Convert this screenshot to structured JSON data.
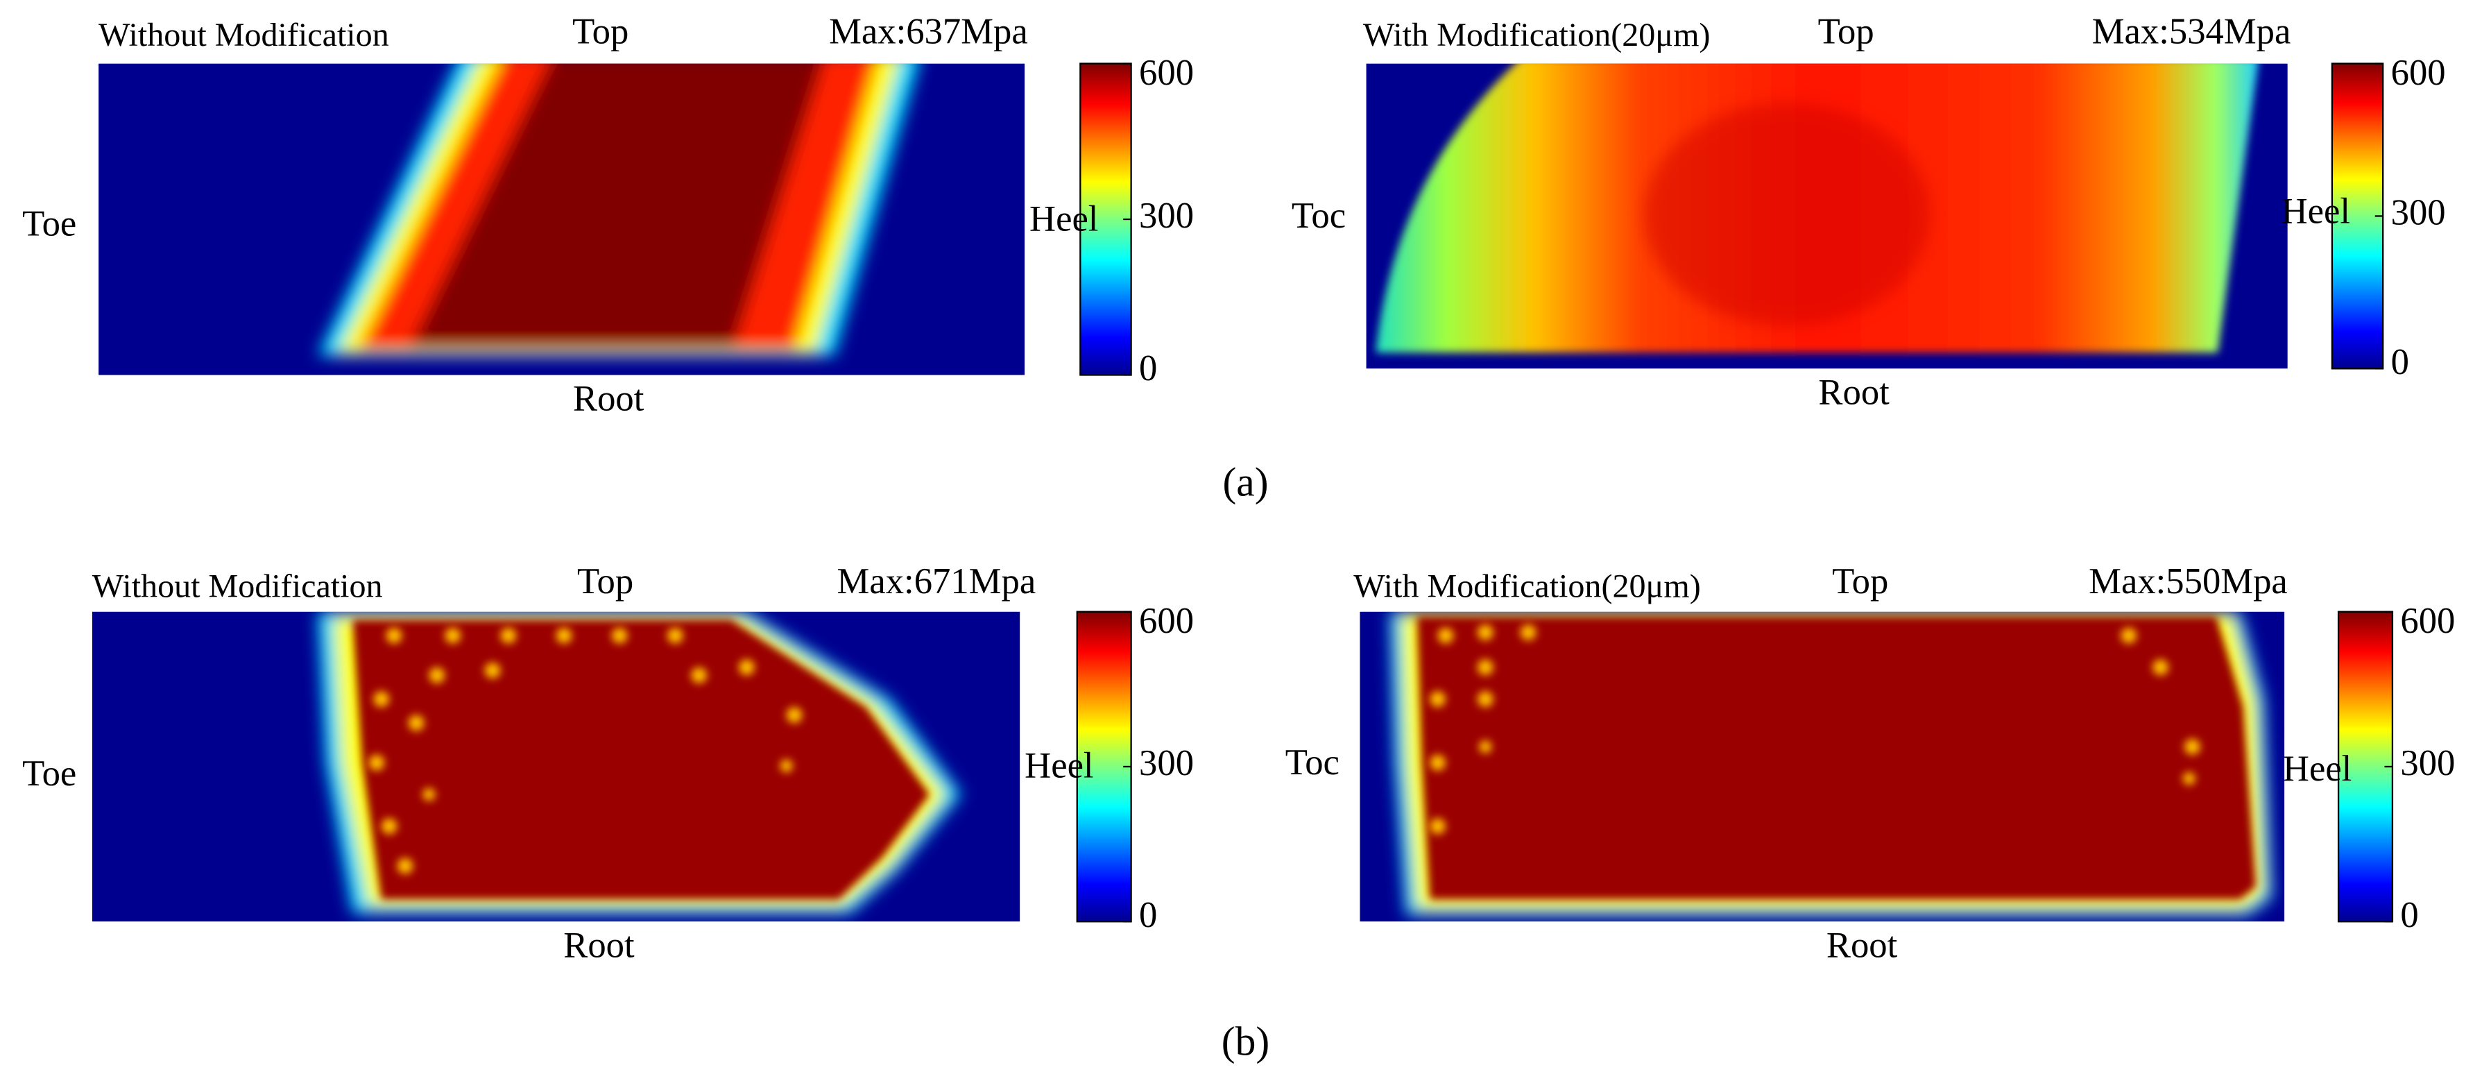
{
  "figure": {
    "rows": [
      {
        "label": "(a)",
        "panels": [
          {
            "title": "Without Modification",
            "top": "Top",
            "max": "Max:637Mpa",
            "left": "Toe",
            "right": "Heel",
            "bottom": "Root",
            "colorbar_ticks": [
              0,
              300,
              600
            ]
          },
          {
            "title": "With Modification(20μm)",
            "top": "Top",
            "max": "Max:534Mpa",
            "left": "Toc",
            "right": "Heel",
            "bottom": "Root",
            "colorbar_ticks": [
              0,
              300,
              600
            ]
          }
        ]
      },
      {
        "label": "(b)",
        "panels": [
          {
            "title": "Without Modification",
            "top": "Top",
            "max": "Max:671Mpa",
            "left": "Toe",
            "right": "Heel",
            "bottom": "Root",
            "colorbar_ticks": [
              0,
              300,
              600
            ]
          },
          {
            "title": "With Modification(20μm)",
            "top": "Top",
            "max": "Max:550Mpa",
            "left": "Toc",
            "right": "Heel",
            "bottom": "Root",
            "colorbar_ticks": [
              0,
              300,
              600
            ]
          }
        ]
      }
    ]
  }
}
